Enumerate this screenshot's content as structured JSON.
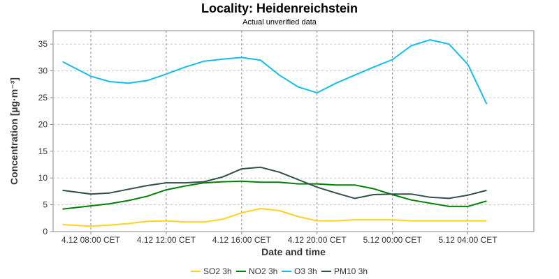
{
  "chart_data": {
    "type": "line",
    "title": "Locality: Heidenreichstein",
    "subtitle": "Actual unverified data",
    "xlabel": "Date and time",
    "ylabel": "Concentration [µg·m⁻³]",
    "ylim": [
      0,
      37.5
    ],
    "yticks": [
      0,
      5,
      10,
      15,
      20,
      25,
      30,
      35
    ],
    "xlim": [
      6,
      31.5
    ],
    "x_unit": "hours from 4.12 00:00 CET",
    "xticks": [
      {
        "x": 8,
        "label": "4.12 08:00 CET"
      },
      {
        "x": 12,
        "label": "4.12 12:00 CET"
      },
      {
        "x": 16,
        "label": "4.12 16:00 CET"
      },
      {
        "x": 20,
        "label": "4.12 20:00 CET"
      },
      {
        "x": 24,
        "label": "5.12 00:00 CET"
      },
      {
        "x": 28,
        "label": "5.12 04:00 CET"
      }
    ],
    "x": [
      6.5,
      8,
      9,
      10,
      11,
      12,
      13,
      14,
      15,
      16,
      17,
      18,
      19,
      20,
      21,
      22,
      23,
      24,
      25,
      26,
      27,
      28,
      29
    ],
    "grid": true,
    "legend_position": "bottom",
    "series": [
      {
        "name": "SO2 3h",
        "color": "#ffd21f",
        "values": [
          1.3,
          1.0,
          1.2,
          1.5,
          1.9,
          2.0,
          1.8,
          1.8,
          2.3,
          3.5,
          4.3,
          3.9,
          2.8,
          2.0,
          2.0,
          2.2,
          2.2,
          2.2,
          2.0,
          2.0,
          2.0,
          2.0,
          2.0
        ]
      },
      {
        "name": "NO2 3h",
        "color": "#008000",
        "values": [
          4.2,
          4.8,
          5.2,
          5.8,
          6.6,
          7.8,
          8.5,
          9.1,
          9.3,
          9.4,
          9.2,
          9.2,
          8.9,
          8.9,
          8.7,
          8.7,
          8.0,
          6.9,
          5.9,
          5.3,
          4.7,
          4.7,
          5.7
        ]
      },
      {
        "name": "O3 3h",
        "color": "#14bee6",
        "values": [
          31.7,
          29.0,
          28.0,
          27.7,
          28.2,
          29.4,
          30.7,
          31.8,
          32.2,
          32.5,
          32.0,
          29.2,
          27.0,
          25.9,
          27.7,
          29.2,
          30.7,
          32.1,
          34.7,
          35.8,
          35.0,
          31.2,
          23.8
        ]
      },
      {
        "name": "PM10 3h",
        "color": "#2f4f4f",
        "values": [
          7.7,
          7.0,
          7.2,
          7.9,
          8.6,
          9.1,
          9.1,
          9.3,
          10.2,
          11.7,
          12.0,
          11.1,
          9.7,
          8.3,
          7.2,
          6.2,
          6.9,
          7.0,
          7.0,
          6.4,
          6.2,
          6.8,
          7.7
        ]
      }
    ]
  }
}
